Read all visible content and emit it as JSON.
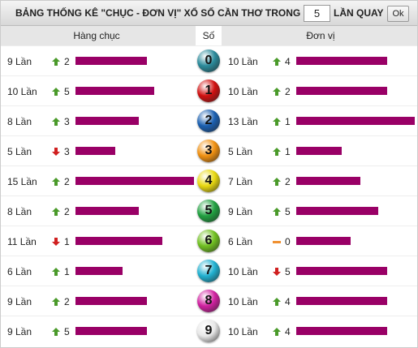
{
  "header": {
    "title": "BẢNG THỐNG KÊ \"CHỤC - ĐƠN VỊ\" XỔ SỐ CẦN THƠ TRONG",
    "input_value": "5",
    "suffix": "LẦN QUAY",
    "button": "Ok"
  },
  "columns": {
    "left": "Hàng chục",
    "middle": "Số",
    "right": "Đơn vị"
  },
  "rows": [
    {
      "digit": "0",
      "ball_color": "#2a8a9a",
      "left": {
        "count": 9,
        "count_label": "9 Lần",
        "trend": "up",
        "change": "2"
      },
      "right": {
        "count": 10,
        "count_label": "10 Lần",
        "trend": "up",
        "change": "4"
      }
    },
    {
      "digit": "1",
      "ball_color": "#d01010",
      "left": {
        "count": 10,
        "count_label": "10 Lần",
        "trend": "up",
        "change": "5"
      },
      "right": {
        "count": 10,
        "count_label": "10 Lần",
        "trend": "up",
        "change": "2"
      }
    },
    {
      "digit": "2",
      "ball_color": "#1a5fb0",
      "left": {
        "count": 8,
        "count_label": "8 Lần",
        "trend": "up",
        "change": "3"
      },
      "right": {
        "count": 13,
        "count_label": "13 Lần",
        "trend": "up",
        "change": "1"
      }
    },
    {
      "digit": "3",
      "ball_color": "#f09010",
      "left": {
        "count": 5,
        "count_label": "5 Lần",
        "trend": "down",
        "change": "3"
      },
      "right": {
        "count": 5,
        "count_label": "5 Lần",
        "trend": "up",
        "change": "1"
      }
    },
    {
      "digit": "4",
      "ball_color": "#e8d810",
      "left": {
        "count": 15,
        "count_label": "15 Lần",
        "trend": "up",
        "change": "2"
      },
      "right": {
        "count": 7,
        "count_label": "7 Lần",
        "trend": "up",
        "change": "2"
      }
    },
    {
      "digit": "5",
      "ball_color": "#20a040",
      "left": {
        "count": 8,
        "count_label": "8 Lần",
        "trend": "up",
        "change": "2"
      },
      "right": {
        "count": 9,
        "count_label": "9 Lần",
        "trend": "up",
        "change": "5"
      }
    },
    {
      "digit": "6",
      "ball_color": "#70c020",
      "left": {
        "count": 11,
        "count_label": "11 Lần",
        "trend": "down",
        "change": "1"
      },
      "right": {
        "count": 6,
        "count_label": "6 Lần",
        "trend": "flat",
        "change": "0"
      }
    },
    {
      "digit": "7",
      "ball_color": "#20b0d0",
      "left": {
        "count": 6,
        "count_label": "6 Lần",
        "trend": "up",
        "change": "1"
      },
      "right": {
        "count": 10,
        "count_label": "10 Lần",
        "trend": "down",
        "change": "5"
      }
    },
    {
      "digit": "8",
      "ball_color": "#d020a0",
      "left": {
        "count": 9,
        "count_label": "9 Lần",
        "trend": "up",
        "change": "2"
      },
      "right": {
        "count": 10,
        "count_label": "10 Lần",
        "trend": "up",
        "change": "4"
      }
    },
    {
      "digit": "9",
      "ball_color": "#e8e8e8",
      "left": {
        "count": 9,
        "count_label": "9 Lần",
        "trend": "up",
        "change": "5"
      },
      "right": {
        "count": 10,
        "count_label": "10 Lần",
        "trend": "up",
        "change": "4"
      }
    }
  ],
  "bar_color": "#990066"
}
